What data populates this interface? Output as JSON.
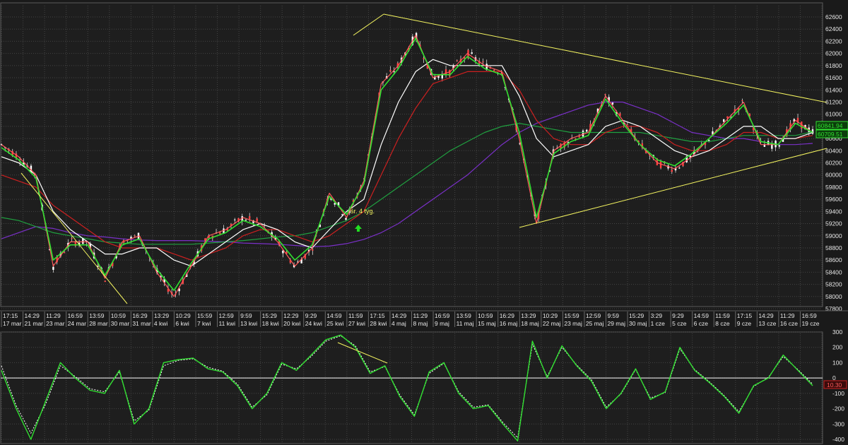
{
  "chart_data": [
    {
      "type": "line",
      "panel": "price",
      "ylim": [
        57800,
        62600
      ],
      "y_ticks": [
        62600,
        62400,
        62200,
        62000,
        61800,
        61600,
        61400,
        61200,
        61000,
        60800,
        60600,
        60400,
        60200,
        60000,
        59800,
        59600,
        59400,
        59200,
        59000,
        58800,
        58600,
        58400,
        58200,
        58000,
        57800
      ],
      "x_time_labels": [
        "17:15",
        "14:29",
        "11:29",
        "16:59",
        "13:59",
        "10:59",
        "16:29",
        "13:29",
        "10:29",
        "15:59",
        "12:59",
        "9:59",
        "15:29",
        "12:29",
        "9:29",
        "14:59",
        "11:59",
        "17:15",
        "14:29",
        "11:29",
        "16:59",
        "13:59",
        "10:59",
        "16:29",
        "13:29",
        "10:29",
        "15:59",
        "12:59",
        "9:59",
        "15:29",
        "3:29",
        "9:29",
        "14:59",
        "11:59",
        "17:15",
        "14:29",
        "11:29",
        "16:59"
      ],
      "x_date_labels": [
        "17 mar",
        "21 mar",
        "23 mar",
        "24 mar",
        "28 mar",
        "30 mar",
        "31 mar",
        "4 kwi",
        "6 kwi",
        "7 kwi",
        "11 kwi",
        "13 kwi",
        "18 kwi",
        "20 kwi",
        "24 kwi",
        "25 kwi",
        "27 kwi",
        "28 kwi",
        "4 maj",
        "8 maj",
        "9 maj",
        "11 maj",
        "15 maj",
        "16 maj",
        "18 maj",
        "22 maj",
        "23 maj",
        "25 maj",
        "29 maj",
        "30 maj",
        "1 cze",
        "5 cze",
        "6 cze",
        "8 cze",
        "9 cze",
        "13 cze",
        "16 cze",
        "19 cze"
      ],
      "series": [
        {
          "color": "#ff5a5a",
          "values": [
            60500,
            60300,
            60000,
            58500,
            58900,
            58900,
            58300,
            58900,
            59000,
            58400,
            58000,
            58500,
            59000,
            59100,
            59300,
            59200,
            58900,
            58500,
            58800,
            59700,
            59300,
            59900,
            61500,
            61800,
            62300,
            61600,
            61700,
            62000,
            61800,
            61700,
            60600,
            59200,
            60400,
            60600,
            60700,
            61300,
            60900,
            60500,
            60200,
            60100,
            60300,
            60600,
            60900,
            61200,
            60500,
            60500,
            60900,
            60700
          ]
        },
        {
          "color": "#30e030",
          "values": [
            60450,
            60250,
            59950,
            58600,
            58850,
            58850,
            58350,
            58850,
            58950,
            58450,
            58100,
            58550,
            58950,
            59050,
            59250,
            59150,
            58950,
            58600,
            58850,
            59650,
            59350,
            59850,
            61400,
            61750,
            62250,
            61650,
            61650,
            61950,
            61750,
            61650,
            60700,
            59300,
            60350,
            60550,
            60650,
            61250,
            60850,
            60500,
            60250,
            60150,
            60350,
            60600,
            60850,
            61150,
            60550,
            60500,
            60850,
            60700
          ]
        },
        {
          "color": "#ffffff",
          "values": [
            60300,
            60200,
            60000,
            59400,
            59100,
            58900,
            58700,
            58700,
            58800,
            58800,
            58600,
            58500,
            58700,
            58900,
            59100,
            59200,
            59100,
            58900,
            58800,
            59100,
            59400,
            59600,
            60500,
            61200,
            61700,
            61900,
            61800,
            61800,
            61800,
            61800,
            61300,
            60600,
            60300,
            60400,
            60500,
            60800,
            60900,
            60800,
            60600,
            60400,
            60300,
            60400,
            60600,
            60800,
            60800,
            60600,
            60600,
            60700
          ]
        },
        {
          "color": "#cc2020",
          "values": [
            60000,
            59900,
            59800,
            59500,
            59300,
            59100,
            58900,
            58800,
            58800,
            58800,
            58700,
            58600,
            58700,
            58800,
            59000,
            59100,
            59100,
            59000,
            58900,
            59000,
            59200,
            59400,
            60000,
            60600,
            61100,
            61500,
            61600,
            61700,
            61700,
            61700,
            61400,
            60900,
            60600,
            60500,
            60500,
            60700,
            60800,
            60800,
            60700,
            60500,
            60400,
            60400,
            60500,
            60700,
            60700,
            60600,
            60600,
            60650
          ]
        },
        {
          "color": "#20a040",
          "values": [
            59300,
            59250,
            59150,
            59050,
            59000,
            58950,
            58900,
            58880,
            58860,
            58860,
            58860,
            58860,
            58880,
            58900,
            58920,
            58950,
            58980,
            59000,
            59050,
            59150,
            59250,
            59400,
            59600,
            59800,
            60000,
            60200,
            60400,
            60550,
            60700,
            60800,
            60850,
            60800,
            60750,
            60700,
            60700,
            60700,
            60700,
            60700,
            60650,
            60600,
            60550,
            60550,
            60600,
            60650,
            60650,
            60650,
            60650,
            60710
          ]
        },
        {
          "color": "#7a30c8",
          "values": [
            58950,
            59050,
            59150,
            59120,
            59050,
            59000,
            58980,
            58950,
            58930,
            58920,
            58920,
            58920,
            58910,
            58900,
            58880,
            58870,
            58860,
            58840,
            58820,
            58830,
            58870,
            58940,
            59050,
            59200,
            59400,
            59600,
            59800,
            60000,
            60250,
            60500,
            60700,
            60850,
            60950,
            61050,
            61150,
            61200,
            61200,
            61100,
            61000,
            60850,
            60700,
            60650,
            60600,
            60600,
            60550,
            60500,
            60500,
            60520
          ]
        }
      ],
      "last_values": [
        "60841.94",
        "60709.51"
      ],
      "annotation": "śr. 4 tyg."
    },
    {
      "type": "line",
      "panel": "oscillator",
      "ylim": [
        -400,
        300
      ],
      "y_ticks": [
        300,
        200,
        100,
        0,
        -100,
        -200,
        -300,
        -400
      ],
      "series": [
        {
          "color": "#30e030",
          "values": [
            50,
            -200,
            -400,
            -150,
            100,
            0,
            -80,
            -100,
            50,
            -300,
            -200,
            100,
            120,
            130,
            60,
            40,
            -50,
            -200,
            -100,
            100,
            50,
            150,
            250,
            280,
            200,
            30,
            80,
            -120,
            -250,
            40,
            100,
            -100,
            -200,
            -180,
            -300,
            -410,
            240,
            0,
            210,
            80,
            -20,
            -200,
            -100,
            60,
            -140,
            -90,
            200,
            50,
            -30,
            -120,
            -230,
            -50,
            0,
            150,
            50,
            -50
          ]
        },
        {
          "color": "#ffffff",
          "values": [
            80,
            -180,
            -360,
            -170,
            80,
            10,
            -70,
            -90,
            40,
            -280,
            -210,
            80,
            115,
            125,
            70,
            45,
            -40,
            -190,
            -110,
            90,
            60,
            140,
            240,
            275,
            210,
            40,
            75,
            -110,
            -240,
            30,
            95,
            -90,
            -190,
            -175,
            -290,
            -390,
            220,
            10,
            200,
            85,
            -10,
            -190,
            -105,
            55,
            -130,
            -95,
            190,
            55,
            -25,
            -115,
            -220,
            -55,
            5,
            140,
            55,
            -40
          ]
        }
      ],
      "last_value": "10.30"
    }
  ],
  "colors": {
    "background": "#1a1a1a",
    "grid": "#444444",
    "trend": "#f5f560",
    "axis_text": "#e6e6e6",
    "up_arrow": "#22dd22"
  }
}
